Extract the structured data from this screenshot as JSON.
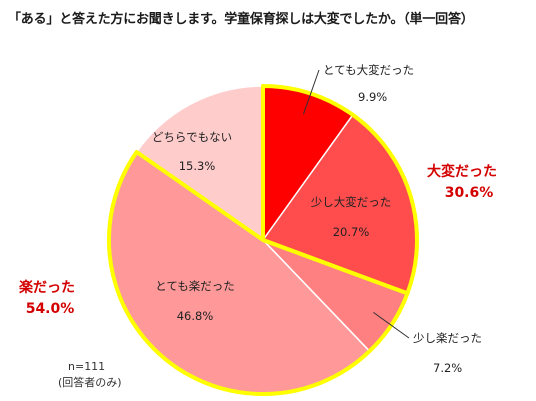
{
  "title": "「ある」と答えた方にお聞きします。学童保育探しは大変でしたか。（単一回答）",
  "chart_data": {
    "type": "pie",
    "title": "「ある」と答えた方にお聞きします。学童保育探しは大変でしたか。（単一回答）",
    "slices": [
      {
        "label": "とても大変だった",
        "value": 9.9,
        "value_text": "9.9%",
        "color": "#ff0000"
      },
      {
        "label": "少し大変だった",
        "value": 20.7,
        "value_text": "20.7%",
        "color": "#ff4d4d"
      },
      {
        "label": "少し楽だった",
        "value": 7.2,
        "value_text": "7.2%",
        "color": "#ff8080"
      },
      {
        "label": "とても楽だった",
        "value": 46.8,
        "value_text": "46.8%",
        "color": "#ff9999"
      },
      {
        "label": "どちらでもない",
        "value": 15.3,
        "value_text": "15.3%",
        "color": "#ffcccc"
      }
    ],
    "groups": [
      {
        "label": "大変だった",
        "value_text": "30.6%",
        "members": [
          "とても大変だった",
          "少し大変だった"
        ],
        "outline_color": "#ffff00"
      },
      {
        "label": "楽だった",
        "value_text": "54.0%",
        "members": [
          "少し楽だった",
          "とても楽だった"
        ],
        "outline_color": "#ffff00"
      }
    ],
    "start_angle_deg": 0,
    "direction": "clockwise"
  },
  "notes": {
    "sample": "n=111",
    "respondents": "(回答者のみ)"
  },
  "colors": {
    "group_text": "#d40000",
    "highlight_outline": "#ffff00",
    "slice_border": "#ffffff"
  }
}
